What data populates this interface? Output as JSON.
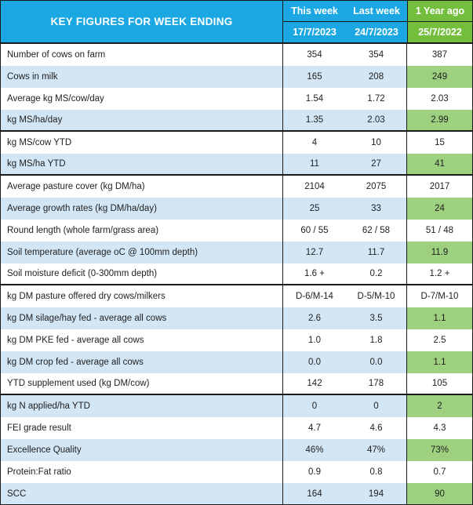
{
  "table": {
    "title": "KEY FIGURES FOR WEEK ENDING",
    "columns": [
      {
        "label": "This week",
        "date": "17/7/2023"
      },
      {
        "label": "Last week",
        "date": "24/7/2023"
      },
      {
        "label": "1 Year ago",
        "date": "25/7/2022"
      }
    ],
    "rows": [
      {
        "label": "Number of cows on farm",
        "this_week": "354",
        "last_week": "354",
        "year_ago": "387",
        "shade": "white",
        "group_end": false
      },
      {
        "label": "Cows in milk",
        "this_week": "165",
        "last_week": "208",
        "year_ago": "249",
        "shade": "blue",
        "group_end": false
      },
      {
        "label": "Average kg MS/cow/day",
        "this_week": "1.54",
        "last_week": "1.72",
        "year_ago": "2.03",
        "shade": "white",
        "group_end": false
      },
      {
        "label": "kg MS/ha/day",
        "this_week": "1.35",
        "last_week": "2.03",
        "year_ago": "2.99",
        "shade": "blue",
        "group_end": true
      },
      {
        "label": "kg MS/cow YTD",
        "this_week": "4",
        "last_week": "10",
        "year_ago": "15",
        "shade": "white",
        "group_end": false
      },
      {
        "label": "kg MS/ha YTD",
        "this_week": "11",
        "last_week": "27",
        "year_ago": "41",
        "shade": "blue",
        "group_end": true
      },
      {
        "label": "Average pasture cover (kg DM/ha)",
        "this_week": "2104",
        "last_week": "2075",
        "year_ago": "2017",
        "shade": "white",
        "group_end": false
      },
      {
        "label": "Average growth rates (kg DM/ha/day)",
        "this_week": "25",
        "last_week": "33",
        "year_ago": "24",
        "shade": "blue",
        "group_end": false
      },
      {
        "label": "Round length (whole farm/grass area)",
        "this_week": "60 / 55",
        "last_week": "62 / 58",
        "year_ago": "51 / 48",
        "shade": "white",
        "group_end": false
      },
      {
        "label": "Soil temperature (average oC  @ 100mm depth)",
        "this_week": "12.7",
        "last_week": "11.7",
        "year_ago": "11.9",
        "shade": "blue",
        "group_end": false
      },
      {
        "label": "Soil moisture deficit (0-300mm depth)",
        "this_week": "1.6 +",
        "last_week": "0.2",
        "year_ago": "1.2 +",
        "shade": "white",
        "group_end": true
      },
      {
        "label": "kg DM pasture offered dry cows/milkers",
        "this_week": "D-6/M-14",
        "last_week": "D-5/M-10",
        "year_ago": "D-7/M-10",
        "shade": "white",
        "group_end": false
      },
      {
        "label": "kg DM silage/hay fed - average all cows",
        "this_week": "2.6",
        "last_week": "3.5",
        "year_ago": "1.1",
        "shade": "blue",
        "group_end": false
      },
      {
        "label": "kg DM PKE fed - average all cows",
        "this_week": "1.0",
        "last_week": "1.8",
        "year_ago": "2.5",
        "shade": "white",
        "group_end": false
      },
      {
        "label": "kg DM crop fed - average all cows",
        "this_week": "0.0",
        "last_week": "0.0",
        "year_ago": "1.1",
        "shade": "blue",
        "group_end": false
      },
      {
        "label": "YTD supplement used (kg DM/cow)",
        "this_week": "142",
        "last_week": "178",
        "year_ago": "105",
        "shade": "white",
        "group_end": true
      },
      {
        "label": "kg N applied/ha YTD",
        "this_week": "0",
        "last_week": "0",
        "year_ago": "2",
        "shade": "blue",
        "group_end": false
      },
      {
        "label": "FEI grade result",
        "this_week": "4.7",
        "last_week": "4.6",
        "year_ago": "4.3",
        "shade": "white",
        "group_end": false
      },
      {
        "label": "Excellence Quality",
        "this_week": "46%",
        "last_week": "47%",
        "year_ago": "73%",
        "shade": "blue",
        "group_end": false
      },
      {
        "label": "Protein:Fat ratio",
        "this_week": "0.9",
        "last_week": "0.8",
        "year_ago": "0.7",
        "shade": "white",
        "group_end": false
      },
      {
        "label": "SCC",
        "this_week": "164",
        "last_week": "194",
        "year_ago": "90",
        "shade": "blue",
        "group_end": false
      }
    ]
  },
  "colors": {
    "header_blue": "#1BA8E2",
    "header_green": "#73BE3C",
    "row_blue": "#D2E6F5",
    "row_white": "#FFFFFF",
    "cell_green": "#9DD07F",
    "header_text": "#FFFFFF",
    "body_text": "#1F1F1F"
  }
}
